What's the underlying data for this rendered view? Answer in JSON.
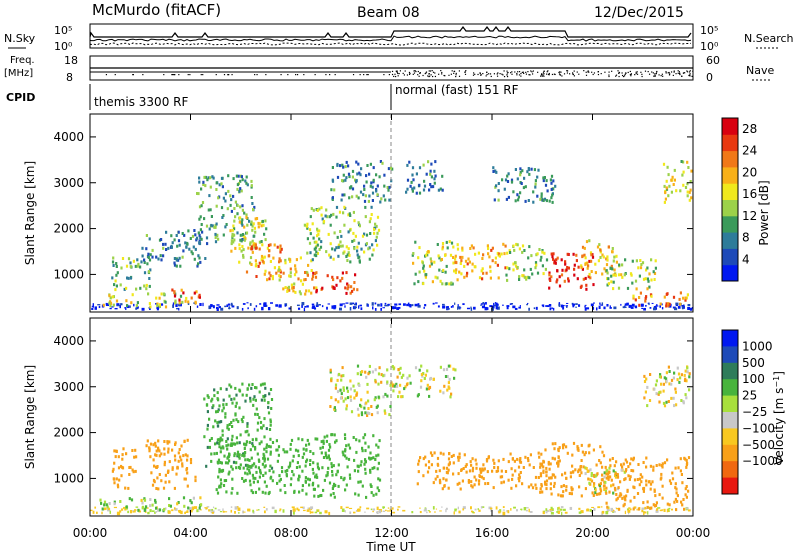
{
  "header": {
    "station": "McMurdo (fitACF)",
    "beam": "Beam 08",
    "date": "12/Dec/2015"
  },
  "top_panels": {
    "nsky_label": "N.Sky",
    "nsearch_label": "N.Search",
    "noise_ticks_left": [
      "10^5",
      "10^0"
    ],
    "noise_ticks_right": [
      "10^5",
      "10^0"
    ],
    "freq_label": "Freq.",
    "freq_unit": "[MHz]",
    "freq_ticks": [
      "18",
      "8"
    ],
    "nave_label": "Nave",
    "nave_ticks": [
      "60",
      "0"
    ],
    "cpid_label": "CPID",
    "cpid_modes": [
      {
        "start_hour": 0,
        "label": "themis 3300 RF"
      },
      {
        "start_hour": 12,
        "label": "normal (fast) 151 RF"
      }
    ]
  },
  "colors": {
    "power_scale": [
      "#0018f0",
      "#1e4ab8",
      "#2e7c9a",
      "#3a9a5a",
      "#9cd24a",
      "#f0e81c",
      "#f8b018",
      "#f07818",
      "#e83810",
      "#d80010"
    ],
    "velocity_scale": [
      "#0018f0",
      "#1e4ab8",
      "#2e7c5a",
      "#48b43c",
      "#a8e03c",
      "#c8c8c8",
      "#f8c820",
      "#f8a018",
      "#f06810",
      "#e81810"
    ]
  },
  "chart_data": [
    {
      "type": "heatmap",
      "name": "Power",
      "ylabel": "Slant Range [km]",
      "yticks": [
        "1000",
        "2000",
        "3000",
        "4000"
      ],
      "ylim": [
        180,
        4500
      ],
      "xlim": [
        0,
        24
      ],
      "colorbar_label": "Power [dB]",
      "colorbar_ticks": [
        "4",
        "8",
        "12",
        "16",
        "20",
        "24",
        "28"
      ],
      "colorbar_range": [
        0,
        30
      ],
      "patches": [
        {
          "t0": 0.3,
          "t1": 3.8,
          "r0": 320,
          "r1": 620,
          "level": 16
        },
        {
          "t0": 0.8,
          "t1": 2.4,
          "r0": 700,
          "r1": 1400,
          "level": 12
        },
        {
          "t0": 2.0,
          "t1": 4.6,
          "r0": 1200,
          "r1": 2000,
          "level": 8
        },
        {
          "t0": 3.2,
          "t1": 4.5,
          "r0": 400,
          "r1": 700,
          "level": 24
        },
        {
          "t0": 4.2,
          "t1": 6.5,
          "r0": 1700,
          "r1": 3200,
          "level": 10
        },
        {
          "t0": 5.5,
          "t1": 7.0,
          "r0": 1200,
          "r1": 2300,
          "level": 16
        },
        {
          "t0": 6.2,
          "t1": 7.6,
          "r0": 900,
          "r1": 1700,
          "level": 22
        },
        {
          "t0": 7.2,
          "t1": 9.0,
          "r0": 600,
          "r1": 1400,
          "level": 18
        },
        {
          "t0": 8.8,
          "t1": 10.6,
          "r0": 600,
          "r1": 1100,
          "level": 26
        },
        {
          "t0": 8.5,
          "t1": 11.5,
          "r0": 1300,
          "r1": 2500,
          "level": 12
        },
        {
          "t0": 9.5,
          "t1": 12.0,
          "r0": 2600,
          "r1": 3500,
          "level": 8
        },
        {
          "t0": 12.5,
          "t1": 14.0,
          "r0": 2800,
          "r1": 3500,
          "level": 8
        },
        {
          "t0": 12.8,
          "t1": 14.5,
          "r0": 800,
          "r1": 1800,
          "level": 14
        },
        {
          "t0": 14.5,
          "t1": 16.5,
          "r0": 900,
          "r1": 1700,
          "level": 20
        },
        {
          "t0": 16.5,
          "t1": 18.2,
          "r0": 900,
          "r1": 1700,
          "level": 14
        },
        {
          "t0": 16.0,
          "t1": 18.5,
          "r0": 2600,
          "r1": 3400,
          "level": 8
        },
        {
          "t0": 18.2,
          "t1": 20.0,
          "r0": 700,
          "r1": 1500,
          "level": 26
        },
        {
          "t0": 19.5,
          "t1": 21.0,
          "r0": 1000,
          "r1": 1800,
          "level": 18
        },
        {
          "t0": 20.5,
          "t1": 22.5,
          "r0": 700,
          "r1": 1400,
          "level": 14
        },
        {
          "t0": 21.5,
          "t1": 23.8,
          "r0": 320,
          "r1": 650,
          "level": 22
        },
        {
          "t0": 22.8,
          "t1": 23.9,
          "r0": 2600,
          "r1": 3500,
          "level": 16
        }
      ]
    },
    {
      "type": "heatmap",
      "name": "Velocity",
      "ylabel": "Slant Range [km]",
      "yticks": [
        "1000",
        "2000",
        "3000",
        "4000"
      ],
      "ylim": [
        180,
        4500
      ],
      "xlim": [
        0,
        24
      ],
      "colorbar_label": "Velocity [m s^-1]",
      "colorbar_ticks": [
        "1000",
        "500",
        "100",
        "25",
        "−25",
        "−100",
        "−500",
        "−1000"
      ],
      "patches": [
        {
          "t0": 0.3,
          "t1": 4.5,
          "r0": 320,
          "r1": 620,
          "level": 100
        },
        {
          "t0": 0.8,
          "t1": 1.8,
          "r0": 800,
          "r1": 1700,
          "level": -300
        },
        {
          "t0": 2.2,
          "t1": 4.2,
          "r0": 800,
          "r1": 1900,
          "level": -300
        },
        {
          "t0": 4.5,
          "t1": 7.2,
          "r0": 1200,
          "r1": 3100,
          "level": 400
        },
        {
          "t0": 5.0,
          "t1": 8.5,
          "r0": 700,
          "r1": 1900,
          "level": 300
        },
        {
          "t0": 8.5,
          "t1": 11.5,
          "r0": 600,
          "r1": 2000,
          "level": 300
        },
        {
          "t0": 9.5,
          "t1": 12.0,
          "r0": 2400,
          "r1": 3500,
          "level": 0
        },
        {
          "t0": 12.0,
          "t1": 14.5,
          "r0": 2800,
          "r1": 3500,
          "level": 0
        },
        {
          "t0": 13.0,
          "t1": 18.5,
          "r0": 800,
          "r1": 1600,
          "level": -300
        },
        {
          "t0": 17.8,
          "t1": 20.5,
          "r0": 650,
          "r1": 1800,
          "level": -300
        },
        {
          "t0": 19.5,
          "t1": 21.3,
          "r0": 700,
          "r1": 1300,
          "level": 0
        },
        {
          "t0": 20.5,
          "t1": 23.8,
          "r0": 350,
          "r1": 1500,
          "level": -300
        },
        {
          "t0": 22.0,
          "t1": 23.9,
          "r0": 2600,
          "r1": 3500,
          "level": 0
        }
      ]
    }
  ],
  "xaxis": {
    "ticks": [
      "00:00",
      "04:00",
      "08:00",
      "12:00",
      "16:00",
      "20:00",
      "00:00"
    ],
    "hours": [
      0,
      4,
      8,
      12,
      16,
      20,
      24
    ],
    "label": "Time UT"
  }
}
